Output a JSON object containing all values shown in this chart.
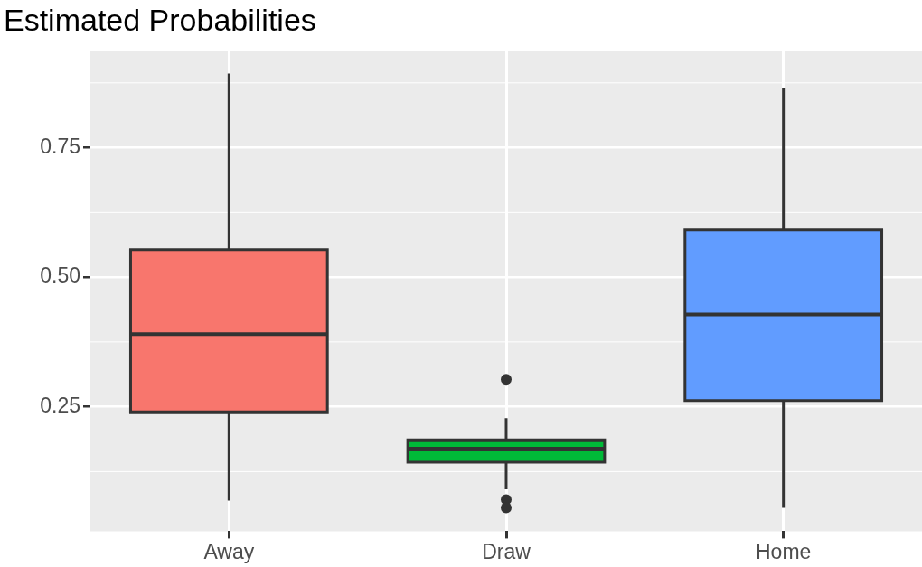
{
  "chart_data": {
    "type": "box",
    "title": "Estimated Probabilities",
    "categories": [
      "Away",
      "Draw",
      "Home"
    ],
    "colors": [
      "#f8766d",
      "#00ba38",
      "#619cff"
    ],
    "boxes": [
      {
        "low": 0.069,
        "q1": 0.24,
        "median": 0.39,
        "q3": 0.553,
        "high": 0.893
      },
      {
        "low": 0.091,
        "q1": 0.143,
        "median": 0.169,
        "q3": 0.186,
        "high": 0.228,
        "outliers": [
          0.303,
          0.071,
          0.055
        ]
      },
      {
        "low": 0.055,
        "q1": 0.262,
        "median": 0.428,
        "q3": 0.591,
        "high": 0.865
      }
    ],
    "ylim": [
      0.01,
      0.936
    ],
    "yticks": [
      {
        "value": 0.25,
        "label": "0.25"
      },
      {
        "value": 0.5,
        "label": "0.50"
      },
      {
        "value": 0.75,
        "label": "0.75"
      }
    ],
    "grid": true
  }
}
